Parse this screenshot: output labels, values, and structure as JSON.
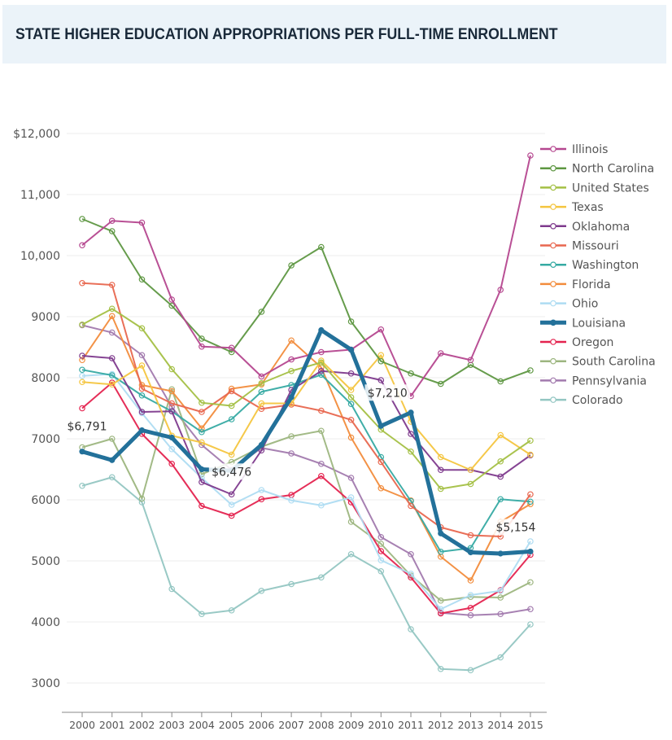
{
  "header": {
    "title": "STATE HIGHER EDUCATION APPROPRIATIONS PER FULL-TIME ENROLLMENT"
  },
  "chart_data": {
    "type": "line",
    "title": "STATE HIGHER EDUCATION APPROPRIATIONS PER FULL-TIME ENROLLMENT",
    "xlabel": "",
    "ylabel": "",
    "x": [
      2000,
      2001,
      2002,
      2003,
      2004,
      2005,
      2006,
      2007,
      2008,
      2009,
      2010,
      2011,
      2012,
      2013,
      2014,
      2015
    ],
    "ylim": [
      2700,
      12000
    ],
    "yticks": [
      3000,
      4000,
      5000,
      6000,
      7000,
      8000,
      9000,
      10000,
      11000,
      12000
    ],
    "ytick_labels": [
      "3000",
      "4000",
      "5000",
      "6000",
      "7000",
      "8000",
      "9000",
      "10,000",
      "11,000",
      "$12,000"
    ],
    "grid": true,
    "legend_position": "right",
    "highlight_series": "Louisiana",
    "series": [
      {
        "name": "Illinois",
        "color": "#b5478f",
        "values": [
          10170,
          10570,
          10540,
          9280,
          8510,
          8490,
          8020,
          8300,
          8420,
          8460,
          8790,
          7700,
          8400,
          8290,
          9440,
          11640
        ]
      },
      {
        "name": "North Carolina",
        "color": "#5e9742",
        "values": [
          10600,
          10400,
          9610,
          9180,
          8640,
          8420,
          9080,
          9840,
          10140,
          8920,
          8270,
          8070,
          7900,
          8210,
          7940,
          8120
        ]
      },
      {
        "name": "United States",
        "color": "#a4c045",
        "values": [
          8870,
          9130,
          8810,
          8140,
          7590,
          7540,
          7910,
          8110,
          8250,
          7680,
          7150,
          6790,
          6180,
          6260,
          6630,
          6970
        ]
      },
      {
        "name": "Texas",
        "color": "#f4c53f",
        "values": [
          7930,
          7890,
          8200,
          7050,
          6940,
          6740,
          7580,
          7580,
          8280,
          7800,
          8370,
          7280,
          6700,
          6490,
          7060,
          6740
        ]
      },
      {
        "name": "Oklahoma",
        "color": "#7e3a8d",
        "values": [
          8360,
          8320,
          7440,
          7450,
          6290,
          6090,
          6810,
          7800,
          8110,
          8070,
          7960,
          7080,
          6490,
          6490,
          6380,
          6730
        ]
      },
      {
        "name": "Missouri",
        "color": "#e8674f",
        "values": [
          9550,
          9520,
          7820,
          7580,
          7440,
          7780,
          7490,
          7560,
          7460,
          7310,
          6620,
          5900,
          5550,
          5420,
          5400,
          6090
        ]
      },
      {
        "name": "Washington",
        "color": "#36aaa3",
        "values": [
          8130,
          8040,
          7710,
          7450,
          7110,
          7320,
          7770,
          7880,
          8050,
          7570,
          6700,
          5980,
          5150,
          5210,
          6010,
          5970
        ]
      },
      {
        "name": "Florida",
        "color": "#f28c3c",
        "values": [
          8290,
          9010,
          7880,
          7780,
          7170,
          7820,
          7890,
          8610,
          8170,
          7020,
          6190,
          5990,
          5070,
          4680,
          5640,
          5930
        ]
      },
      {
        "name": "Ohio",
        "color": "#aedcf2",
        "values": [
          8030,
          8060,
          7420,
          6830,
          6360,
          5920,
          6160,
          5990,
          5910,
          6040,
          5010,
          4790,
          4210,
          4440,
          4510,
          5320
        ]
      },
      {
        "name": "Louisiana",
        "color": "#23719a",
        "values": [
          6791,
          6650,
          7140,
          7020,
          6500,
          6476,
          6900,
          7680,
          8780,
          8460,
          7210,
          7430,
          5450,
          5140,
          5120,
          5154
        ]
      },
      {
        "name": "Oregon",
        "color": "#e4234f",
        "values": [
          7500,
          7920,
          7080,
          6590,
          5900,
          5740,
          6010,
          6080,
          6390,
          5960,
          5160,
          4730,
          4140,
          4230,
          4520,
          5100
        ]
      },
      {
        "name": "South Carolina",
        "color": "#9db680",
        "values": [
          6860,
          7000,
          6020,
          7810,
          6420,
          6620,
          6870,
          7040,
          7130,
          5640,
          5280,
          4760,
          4350,
          4410,
          4400,
          4650
        ]
      },
      {
        "name": "Pennsylvania",
        "color": "#a27aae",
        "values": [
          8860,
          8740,
          8370,
          7520,
          6900,
          6490,
          6850,
          6760,
          6590,
          6360,
          5390,
          5110,
          4150,
          4110,
          4130,
          4210
        ]
      },
      {
        "name": "Colorado",
        "color": "#93c6c2",
        "values": [
          6230,
          6370,
          5960,
          4540,
          4130,
          4190,
          4510,
          4620,
          4730,
          5110,
          4830,
          3880,
          3230,
          3210,
          3420,
          3960
        ]
      }
    ],
    "annotations": [
      {
        "series": "Louisiana",
        "x": 2000,
        "text": "$6,791"
      },
      {
        "series": "Louisiana",
        "x": 2005,
        "text": "$6,476"
      },
      {
        "series": "Louisiana",
        "x": 2010,
        "text": "$7,210"
      },
      {
        "series": "Louisiana",
        "x": 2015,
        "text": "$5,154"
      }
    ]
  }
}
